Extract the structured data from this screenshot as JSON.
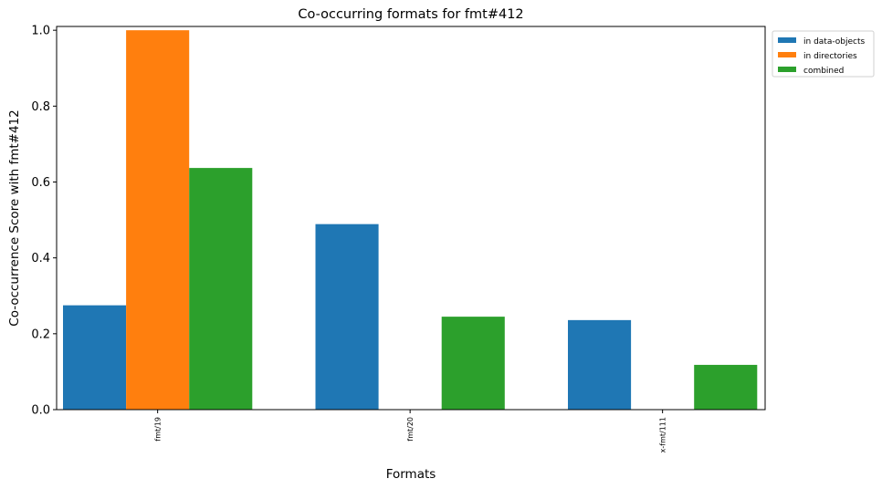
{
  "chart_data": {
    "type": "bar",
    "title": "Co-occurring formats for fmt#412",
    "xlabel": "Formats",
    "ylabel": "Co-occurrence Score with fmt#412",
    "categories": [
      "fmt/19",
      "fmt/20",
      "x-fmt/111"
    ],
    "series": [
      {
        "name": "in data-objects",
        "color": "#1f77b4",
        "values": [
          0.275,
          0.489,
          0.236
        ]
      },
      {
        "name": "in directories",
        "color": "#ff7f0e",
        "values": [
          1.0,
          0.0,
          0.0
        ]
      },
      {
        "name": "combined",
        "color": "#2ca02c",
        "values": [
          0.637,
          0.245,
          0.118
        ]
      }
    ],
    "ylim": [
      0,
      1.01
    ],
    "yticks": [
      0.0,
      0.2,
      0.4,
      0.6,
      0.8,
      1.0
    ],
    "ytick_labels": [
      "0.0",
      "0.2",
      "0.4",
      "0.6",
      "0.8",
      "1.0"
    ],
    "grid": false,
    "legend_position": "outside-top-right"
  }
}
